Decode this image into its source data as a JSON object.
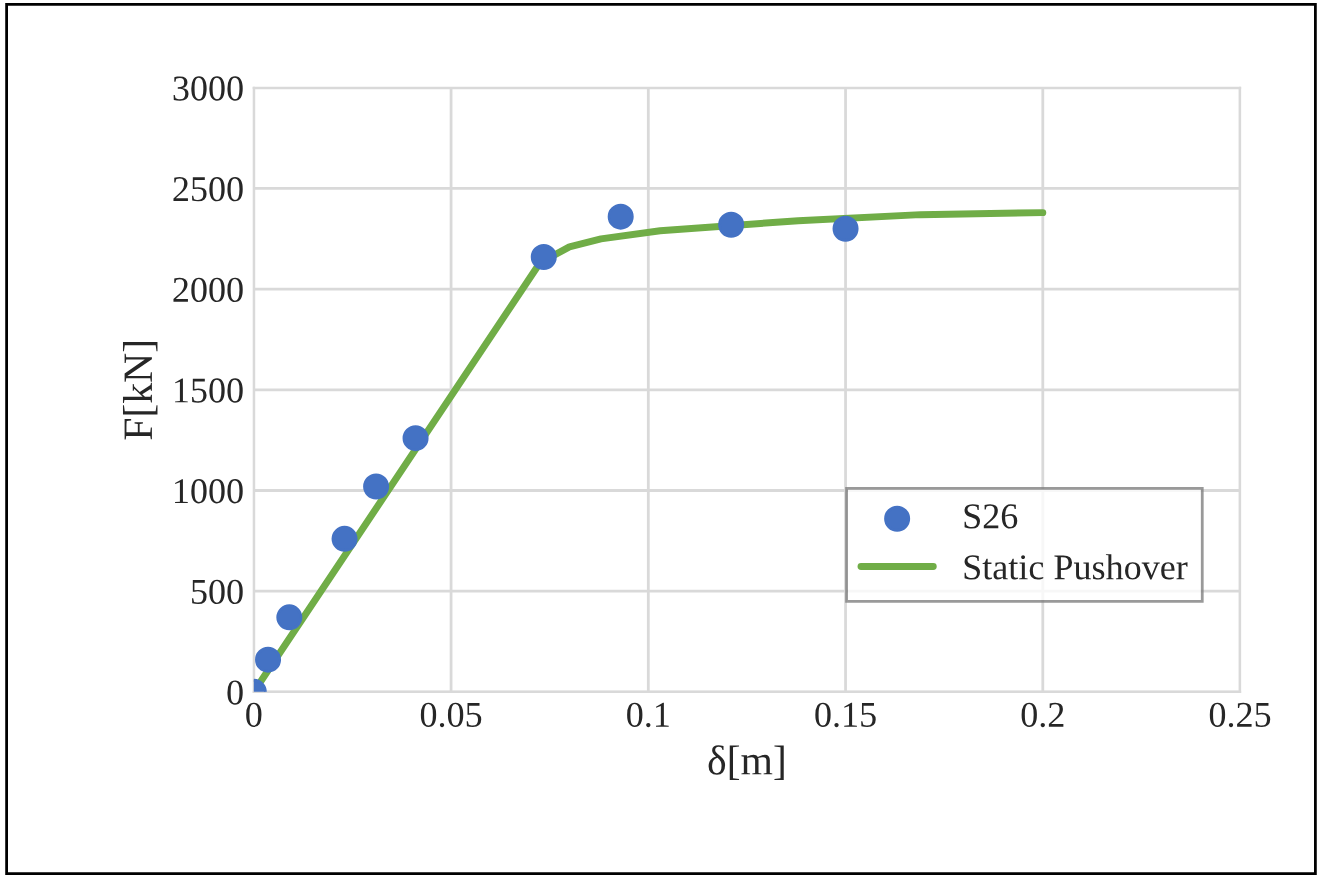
{
  "chart_data": {
    "type": "scatter",
    "xlabel": "δ[m]",
    "ylabel": "F[kN]",
    "xlim": [
      0,
      0.25
    ],
    "xticks": [
      0,
      0.05,
      0.1,
      0.15,
      0.2,
      0.25
    ],
    "ylim": [
      0,
      3000
    ],
    "yticks": [
      0,
      500,
      1000,
      1500,
      2000,
      2500,
      3000
    ],
    "grid": true,
    "legend": "bottom right",
    "series": [
      {
        "name": "S26",
        "marker": "circle",
        "color": "#4472c4",
        "x": [
          0,
          0.0036,
          0.009,
          0.023,
          0.031,
          0.041,
          0.0735,
          0.093,
          0.121,
          0.15
        ],
        "values": [
          0,
          160,
          370,
          760,
          1020,
          1260,
          2160,
          2360,
          2320,
          2300
        ]
      },
      {
        "name": "Static Pushover",
        "type": "line",
        "marker": "none",
        "color": "#70ad47",
        "x": [
          0,
          0.0725,
          0.08,
          0.088,
          0.103,
          0.138,
          0.169,
          0.2
        ],
        "values": [
          0,
          2130,
          2210,
          2250,
          2290,
          2340,
          2370,
          2380
        ]
      }
    ]
  }
}
